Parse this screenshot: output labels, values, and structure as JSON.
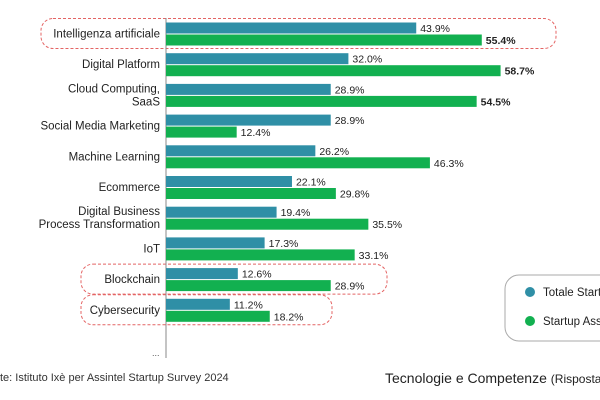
{
  "chart_data": {
    "type": "bar",
    "orientation": "horizontal",
    "categories": [
      [
        "Intelligenza artificiale"
      ],
      [
        "Digital Platform"
      ],
      [
        "Cloud Computing,",
        "SaaS"
      ],
      [
        "Social Media Marketing"
      ],
      [
        "Machine Learning"
      ],
      [
        "Ecommerce"
      ],
      [
        "Digital Business",
        "Process Transformation"
      ],
      [
        "IoT"
      ],
      [
        "Blockchain"
      ],
      [
        "Cybersecurity"
      ]
    ],
    "series": [
      {
        "name": "Totale Start",
        "color": "#2f8fa6",
        "values": [
          43.9,
          32.0,
          28.9,
          28.9,
          26.2,
          22.1,
          19.4,
          17.3,
          12.6,
          11.2
        ],
        "labels": [
          "43.9%",
          "32.0%",
          "28.9%",
          "28.9%",
          "26.2%",
          "22.1%",
          "19.4%",
          "17.3%",
          "12.6%",
          "11.2%"
        ],
        "bold": [
          false,
          false,
          false,
          false,
          false,
          false,
          false,
          false,
          false,
          false
        ]
      },
      {
        "name": "Startup Ass",
        "color": "#12b050",
        "values": [
          55.4,
          58.7,
          54.5,
          12.4,
          46.3,
          29.8,
          35.5,
          33.1,
          28.9,
          18.2
        ],
        "labels": [
          "55.4%",
          "58.7%",
          "54.5%",
          "12.4%",
          "46.3%",
          "29.8%",
          "35.5%",
          "33.1%",
          "28.9%",
          "18.2%"
        ],
        "bold": [
          true,
          true,
          true,
          false,
          false,
          false,
          false,
          false,
          false,
          false
        ]
      }
    ],
    "highlighted_categories": [
      0,
      8,
      9
    ],
    "highlight_color": "#e46464",
    "truncated_marker": "...",
    "legend_position": "right",
    "grid": false
  },
  "footer": {
    "source": "te: Istituto Ixè per Assintel Startup Survey 2024",
    "title": "Tecnologie e Competenze",
    "subtitle": "(Risposta"
  }
}
